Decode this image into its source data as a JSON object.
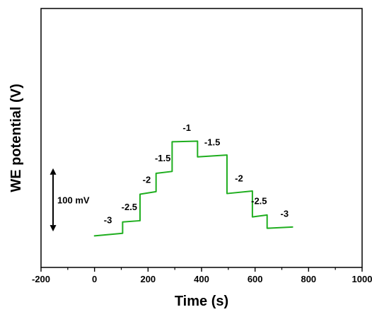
{
  "chart_data": {
    "type": "line",
    "xlabel": "Time (s)",
    "ylabel": "WE potential (V)",
    "xlim": [
      -200,
      1000
    ],
    "xticks": [
      "-200",
      "0",
      "200",
      "400",
      "600",
      "800",
      "1000"
    ],
    "ylim": [
      -0.35,
      0.06
    ],
    "y_tick_labels_shown": false,
    "grid": false,
    "colors": {
      "series": "#1fae1f",
      "axes": "#000000",
      "text": "#000000"
    },
    "series": [
      {
        "values": [
          [
            0,
            -0.3
          ],
          [
            105,
            -0.296
          ],
          [
            105,
            -0.278
          ],
          [
            170,
            -0.276
          ],
          [
            170,
            -0.234
          ],
          [
            230,
            -0.23
          ],
          [
            230,
            -0.201
          ],
          [
            290,
            -0.198
          ],
          [
            290,
            -0.151
          ],
          [
            385,
            -0.15
          ],
          [
            385,
            -0.175
          ],
          [
            495,
            -0.172
          ],
          [
            495,
            -0.233
          ],
          [
            590,
            -0.229
          ],
          [
            590,
            -0.27
          ],
          [
            645,
            -0.267
          ],
          [
            645,
            -0.288
          ],
          [
            740,
            -0.286
          ]
        ]
      }
    ],
    "step_labels": [
      {
        "text": "-3",
        "x": 50,
        "y": -0.28
      },
      {
        "text": "-2.5",
        "x": 130,
        "y": -0.259
      },
      {
        "text": "-2",
        "x": 195,
        "y": -0.216
      },
      {
        "text": "-1.5",
        "x": 255,
        "y": -0.182
      },
      {
        "text": "-1",
        "x": 345,
        "y": -0.134
      },
      {
        "text": "-1.5",
        "x": 440,
        "y": -0.157
      },
      {
        "text": "-2",
        "x": 540,
        "y": -0.214
      },
      {
        "text": "-2.5",
        "x": 615,
        "y": -0.25
      },
      {
        "text": "-3",
        "x": 710,
        "y": -0.27
      }
    ],
    "scale_bar": {
      "label": "100 mV",
      "x": -155,
      "y_from": -0.293,
      "y_to": -0.193
    }
  }
}
